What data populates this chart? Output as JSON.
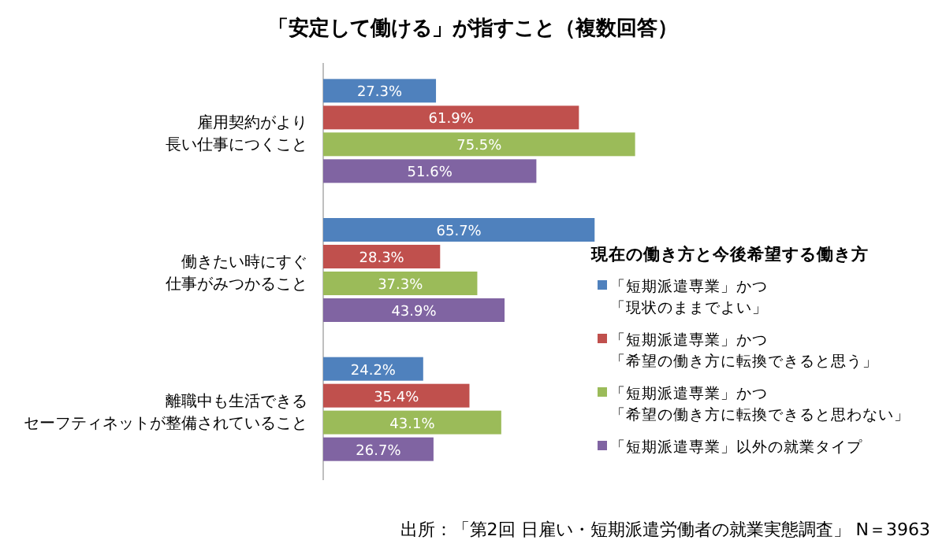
{
  "chart_data": {
    "type": "bar",
    "orientation": "horizontal",
    "title": "「安定して働ける」が指すこと（複数回答）",
    "legend_title": "現在の働き方と今後希望する働き方",
    "legend": "right",
    "categories": [
      "雇用契約がより長い仕事につくこと",
      "働きたい時にすぐ仕事がみつかること",
      "離職中も生活できるセーフティネットが整備されていること"
    ],
    "series": [
      {
        "name": "「短期派遣専業」かつ「現状のままでよい」",
        "color": "#4f81bd",
        "values": [
          27.3,
          65.7,
          24.2
        ],
        "value_labels": [
          "27.3%",
          "65.7%",
          "24.2%"
        ]
      },
      {
        "name": "「短期派遣専業」かつ「希望の働き方に転換できると思う」",
        "color": "#c0504d",
        "values": [
          61.9,
          28.3,
          35.4
        ],
        "value_labels": [
          "61.9%",
          "28.3%",
          "35.4%"
        ]
      },
      {
        "name": "「短期派遣専業」かつ「希望の働き方に転換できると思わない」",
        "color": "#9bbb59",
        "values": [
          75.5,
          37.3,
          43.1
        ],
        "value_labels": [
          "75.5%",
          "37.3%",
          "43.1%"
        ]
      },
      {
        "name": "「短期派遣専業」以外の就業タイプ",
        "color": "#8064a2",
        "values": [
          51.6,
          43.9,
          26.7
        ],
        "value_labels": [
          "51.6%",
          "43.9%",
          "26.7%"
        ]
      }
    ],
    "annotations": [
      "出所：「第2回 日雇い・短期派遣労働者の就業実態調査」 N＝3963"
    ]
  }
}
